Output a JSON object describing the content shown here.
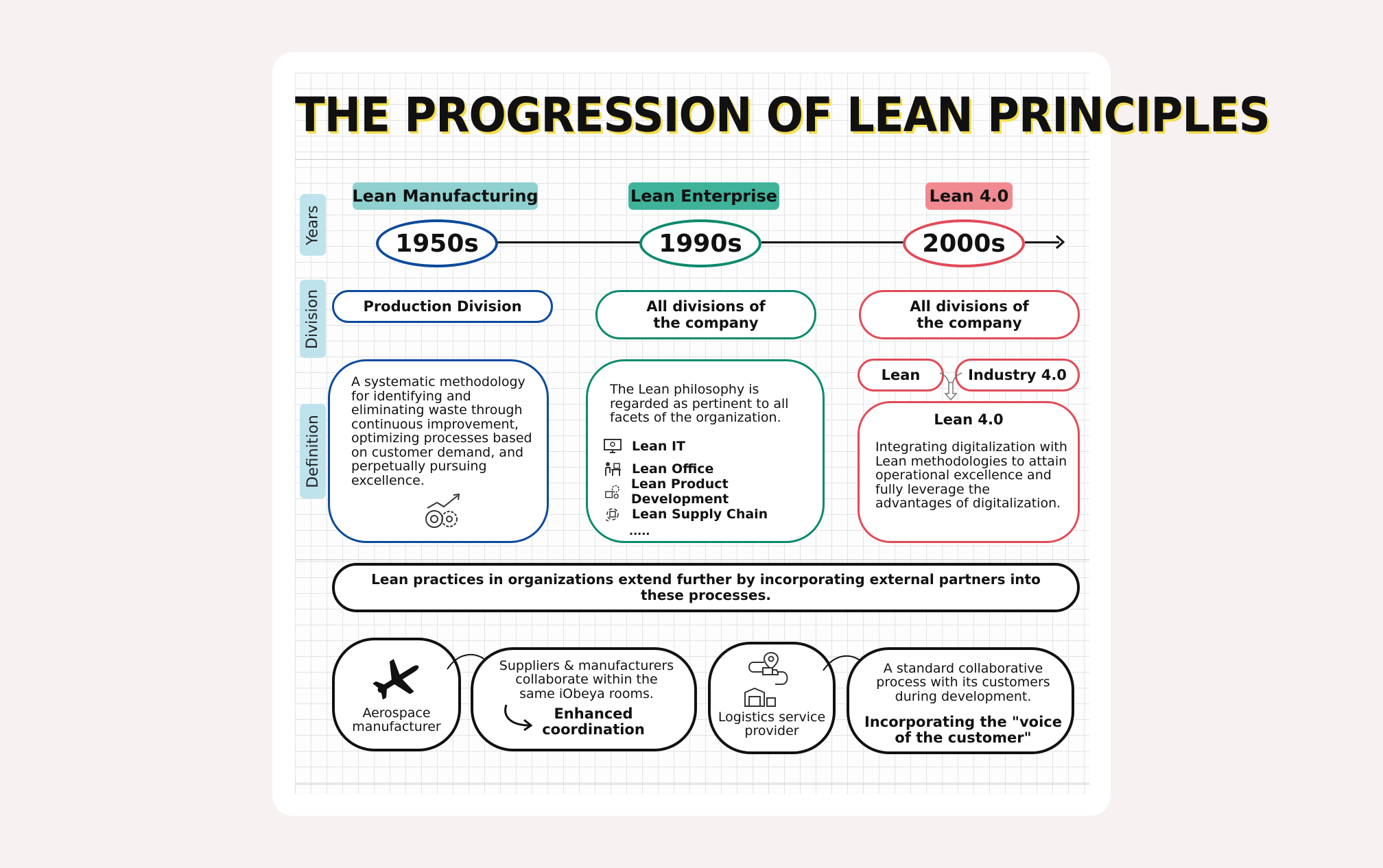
{
  "title": "THE PROGRESSION OF LEAN PRINCIPLES",
  "row_labels": {
    "years": "Years",
    "division": "Division",
    "definition": "Definition"
  },
  "colors": {
    "blue": "#0d4a9b",
    "teal": "#0d8a6e",
    "red": "#e04b57",
    "tag_blue": "#8fd0d0",
    "tag_teal": "#3fb29a",
    "tag_red": "#f08a90",
    "side": "#bfe3ec",
    "title_shadow": "#f4dd4d"
  },
  "eras": [
    {
      "label": "Lean Manufacturing",
      "year": "1950s",
      "division": "Production Division",
      "definition": "A systematic methodology for identifying and eliminating waste through continuous improvement, optimizing processes based on customer demand, and perpetually pursuing excellence.",
      "icon": "gears-growth-icon"
    },
    {
      "label": "Lean Enterprise",
      "year": "1990s",
      "division": "All divisions of the company",
      "definition": "The Lean philosophy is regarded as pertinent to all facets of the organization.",
      "items": [
        {
          "label": "Lean IT",
          "icon": "computer-icon"
        },
        {
          "label": "Lean Office",
          "icon": "office-desk-icon"
        },
        {
          "label": "Lean Product Development",
          "icon": "product-development-icon"
        },
        {
          "label": "Lean Supply Chain",
          "icon": "supply-chain-icon"
        }
      ],
      "more": "....."
    },
    {
      "label": "Lean 4.0",
      "year": "2000s",
      "division": "All divisions of the company",
      "combine_left": "Lean",
      "combine_right": "Industry 4.0",
      "definition_title": "Lean 4.0",
      "definition": "Integrating digitalization with Lean methodologies to attain operational excellence and fully leverage the advantages of digitalization."
    }
  ],
  "extension_statement": "Lean practices in organizations extend further by incorporating external partners into these processes.",
  "examples": [
    {
      "actor": "Aerospace manufacturer",
      "actor_icon": "airplane-icon",
      "description": "Suppliers & manufacturers collaborate within the same iObeya rooms.",
      "outcome": "Enhanced coordination"
    },
    {
      "actor": "Logistics service provider",
      "actor_icon": "logistics-icon",
      "description": "A standard collaborative process with its customers during development.",
      "outcome": "Incorporating the \"voice of the customer\""
    }
  ]
}
